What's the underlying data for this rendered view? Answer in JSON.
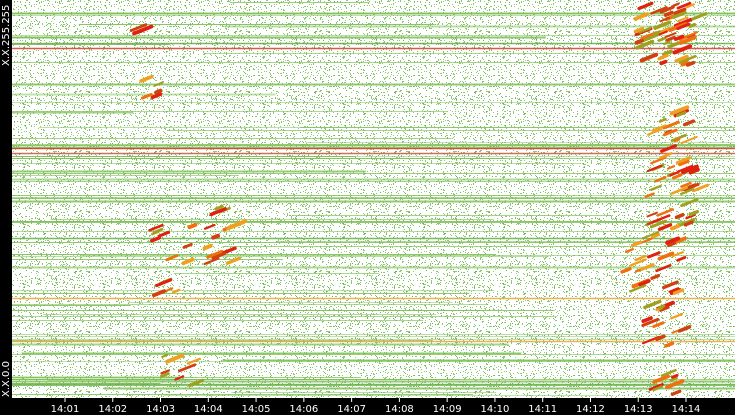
{
  "chart_data": {
    "type": "heatmap",
    "y_labels": [
      "X.X.255.255",
      "X.X.0.0"
    ],
    "x_labels": [
      "14:01",
      "14:02",
      "14:03",
      "14:04",
      "14:05",
      "14:06",
      "14:07",
      "14:08",
      "14:09",
      "14:10",
      "14:11",
      "14:12",
      "14:13",
      "14:14"
    ]
  }
}
